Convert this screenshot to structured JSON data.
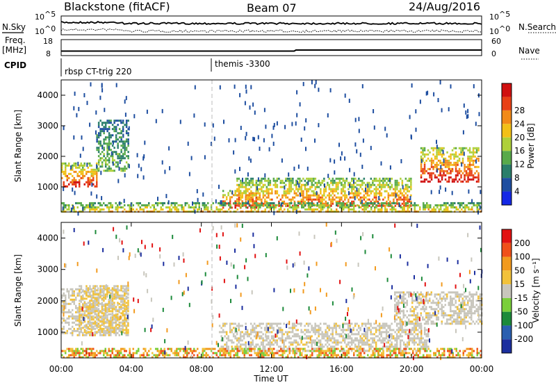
{
  "header": {
    "station": "Blackstone (fitACF)",
    "beam": "Beam 07",
    "date": "24/Aug/2016"
  },
  "top_panels": {
    "nsky_label": "N.Sky",
    "nsearch_label": "N.Search",
    "freq_label": "Freq.",
    "freq_unit": "[MHz]",
    "nave_label": "Nave",
    "cpid_label": "CPID",
    "count_ticks": [
      "10^5",
      "10^0"
    ],
    "freq_ticks": [
      "18",
      "8"
    ],
    "nave_ticks": [
      "60",
      "0"
    ],
    "cpid_segments": [
      "rbsp CT-trig 220",
      "themis -3300"
    ]
  },
  "colorbars": {
    "power": {
      "label": "Power [dB]",
      "ticks": [
        "4",
        "8",
        "12",
        "16",
        "20",
        "24",
        "28"
      ],
      "colors": [
        "#1428e6",
        "#1e4ea0",
        "#2a7e6a",
        "#58aa4a",
        "#aed03a",
        "#f2c018",
        "#f28a18",
        "#e84016",
        "#d01010"
      ]
    },
    "velocity": {
      "label": "Velocity [m s⁻¹]",
      "ticks": [
        "200",
        "100",
        "50",
        "15",
        "-15",
        "-50",
        "-100",
        "-200"
      ],
      "colors": [
        "#1b2e9e",
        "#2a5fb0",
        "#1c8a3a",
        "#7acf3a",
        "#c8c6bc",
        "#f2c23a",
        "#f29a1e",
        "#f0501a",
        "#e21212"
      ]
    }
  },
  "axes": {
    "ylabel": "Slant Range [km]",
    "xlabel": "Time UT",
    "y_ticks": [
      "1000",
      "2000",
      "3000",
      "4000"
    ],
    "x_ticks": [
      "00:00",
      "04:00",
      "08:00",
      "12:00",
      "16:00",
      "20:00",
      "00:00"
    ]
  },
  "chart_data": [
    {
      "type": "heatmap",
      "panel": "power",
      "ylabel": "Slant Range [km]",
      "xlabel": "Time UT",
      "xlim": [
        "00:00",
        "24:00"
      ],
      "ylim": [
        180,
        4500
      ],
      "units": "dB",
      "regions": [
        {
          "t": [
            0.0,
            2.0
          ],
          "range": [
            1000,
            1800
          ],
          "peak_db": 28
        },
        {
          "t": [
            2.0,
            3.8
          ],
          "range": [
            1500,
            3200
          ],
          "peak_db": 12
        },
        {
          "t": [
            9.2,
            11.2
          ],
          "range": [
            300,
            900
          ],
          "peak_db": 28
        },
        {
          "t": [
            10.0,
            20.0
          ],
          "range": [
            400,
            1300
          ],
          "peak_db": 24
        },
        {
          "t": [
            20.5,
            23.8
          ],
          "range": [
            1200,
            2300
          ],
          "peak_db": 28
        },
        {
          "t": [
            0.0,
            24.0
          ],
          "range": [
            180,
            500
          ],
          "peak_db": 20
        }
      ]
    },
    {
      "type": "heatmap",
      "panel": "velocity",
      "ylabel": "Slant Range [km]",
      "xlabel": "Time UT",
      "xlim": [
        "00:00",
        "24:00"
      ],
      "ylim": [
        180,
        4500
      ],
      "units": "m s-1",
      "regions": [
        {
          "t": [
            0.0,
            3.8
          ],
          "range": [
            900,
            2400
          ],
          "velocity": -15
        },
        {
          "t": [
            9.0,
            21.0
          ],
          "range": [
            400,
            1300
          ],
          "velocity": -15
        },
        {
          "t": [
            19.0,
            24.0
          ],
          "range": [
            1300,
            2300
          ],
          "velocity": -15
        },
        {
          "t": [
            1.0,
            3.8
          ],
          "range": [
            1000,
            2500
          ],
          "velocity": -50
        },
        {
          "t": [
            0.0,
            24.0
          ],
          "range": [
            180,
            500
          ],
          "velocity": 15
        }
      ]
    }
  ]
}
